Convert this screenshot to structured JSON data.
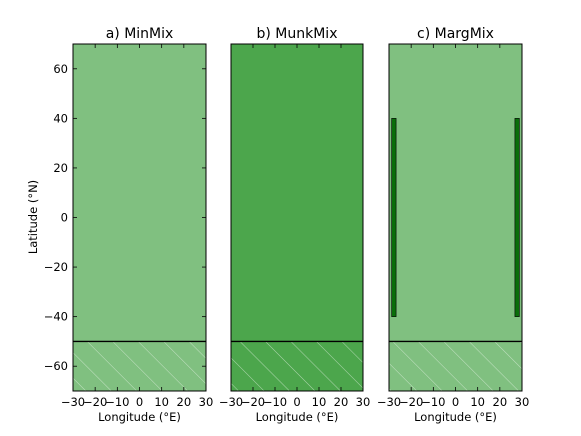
{
  "chart_data": [
    {
      "type": "area",
      "title": "a) MinMix",
      "xlabel": "Longitude (°E)",
      "ylabel": "Latitude (°N)",
      "xlim": [
        -30,
        30
      ],
      "ylim": [
        -70,
        70
      ],
      "xticks": [
        "−30",
        "−20",
        "−10",
        "0",
        "10",
        "20",
        "30"
      ],
      "yticks": [
        "60",
        "40",
        "20",
        "0",
        "−20",
        "−40",
        "−60"
      ],
      "region_color": "#80c080",
      "southern_boundary_lat": -50,
      "hatched_below": true,
      "margin_bands": []
    },
    {
      "type": "area",
      "title": "b) MunkMix",
      "xlabel": "Longitude (°E)",
      "xlim": [
        -30,
        30
      ],
      "ylim": [
        -70,
        70
      ],
      "xticks": [
        "−30",
        "−20",
        "−10",
        "0",
        "10",
        "20",
        "30"
      ],
      "region_color": "#4ca64c",
      "southern_boundary_lat": -50,
      "hatched_below": true,
      "margin_bands": []
    },
    {
      "type": "area",
      "title": "c) MargMix",
      "xlabel": "Longitude (°E)",
      "xlim": [
        -30,
        30
      ],
      "ylim": [
        -70,
        70
      ],
      "xticks": [
        "−30",
        "−20",
        "−10",
        "0",
        "10",
        "20",
        "30"
      ],
      "region_color": "#80c080",
      "margin_color": "#0a6e0a",
      "southern_boundary_lat": -50,
      "hatched_below": true,
      "margin_bands": [
        {
          "x": [
            -28.8,
            -26.8
          ],
          "y": [
            -40,
            40
          ]
        },
        {
          "x": [
            26.8,
            28.8
          ],
          "y": [
            -40,
            40
          ]
        }
      ]
    }
  ]
}
